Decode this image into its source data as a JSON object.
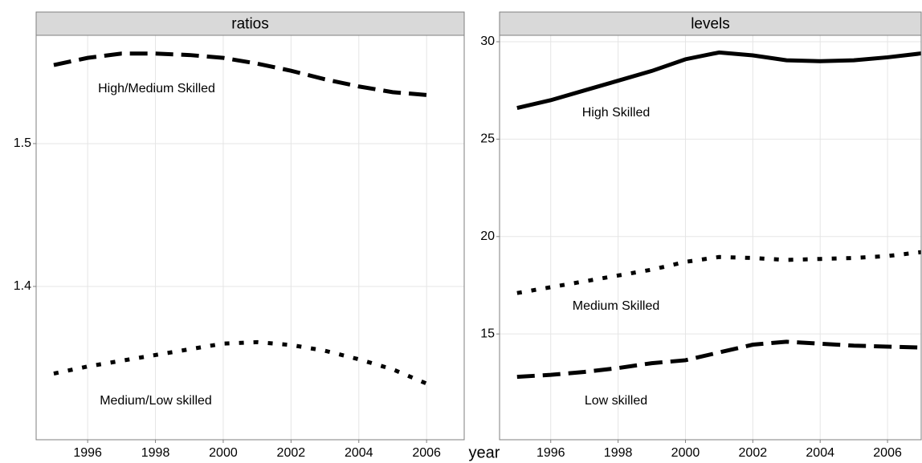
{
  "xlabel": "year",
  "chart_data": [
    {
      "type": "line",
      "title": "ratios",
      "x": [
        1995,
        1996,
        1997,
        1998,
        1999,
        2000,
        2001,
        2002,
        2003,
        2004,
        2005,
        2006
      ],
      "series": [
        {
          "name": "High/Medium Skilled",
          "color": "#000000",
          "linestyle": "dashed",
          "values": [
            1.555,
            1.56,
            1.563,
            1.563,
            1.562,
            1.56,
            1.556,
            1.551,
            1.545,
            1.54,
            1.536,
            1.534
          ]
        },
        {
          "name": "Medium/Low skilled",
          "color": "#000000",
          "linestyle": "dotted",
          "values": [
            1.339,
            1.344,
            1.348,
            1.352,
            1.356,
            1.36,
            1.361,
            1.359,
            1.355,
            1.349,
            1.342,
            1.332
          ]
        }
      ],
      "xlim": [
        1994.48,
        2007.11
      ],
      "xticks": [
        1996,
        1998,
        2000,
        2002,
        2004,
        2006
      ],
      "ylim": [
        1.2927,
        1.5758
      ],
      "yticks": [
        1.4,
        1.5
      ],
      "grid": true
    },
    {
      "type": "line",
      "title": "levels",
      "x": [
        1995,
        1996,
        1997,
        1998,
        1999,
        2000,
        2001,
        2002,
        2003,
        2004,
        2005,
        2006,
        2007
      ],
      "series": [
        {
          "name": "High Skilled",
          "color": "#000000",
          "linestyle": "solid",
          "values": [
            26.6,
            27.0,
            27.5,
            28.0,
            28.5,
            29.1,
            29.45,
            29.3,
            29.05,
            29.0,
            29.05,
            29.2,
            29.4
          ]
        },
        {
          "name": "Medium Skilled",
          "color": "#000000",
          "linestyle": "dotted",
          "values": [
            17.1,
            17.4,
            17.7,
            18.0,
            18.3,
            18.7,
            18.95,
            18.9,
            18.8,
            18.85,
            18.9,
            19.0,
            19.2
          ]
        },
        {
          "name": "Low skilled",
          "color": "#000000",
          "linestyle": "dashed",
          "values": [
            12.8,
            12.9,
            13.05,
            13.25,
            13.5,
            13.65,
            14.05,
            14.45,
            14.6,
            14.5,
            14.4,
            14.35,
            14.3
          ]
        }
      ],
      "xlim": [
        1994.48,
        2007.0
      ],
      "xticks": [
        1996,
        1998,
        2000,
        2002,
        2004,
        2006
      ],
      "ylim": [
        9.57,
        30.33
      ],
      "yticks": [
        15,
        20,
        25,
        30
      ],
      "grid": true
    }
  ]
}
